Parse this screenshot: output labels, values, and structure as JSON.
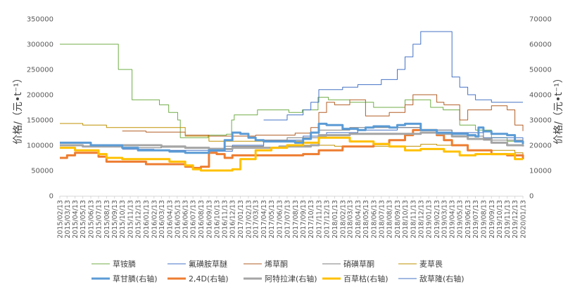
{
  "chart_data": {
    "type": "line",
    "title": "",
    "ylabel_left": "价格/（元•t⁻¹）",
    "ylabel_right": "价格/（元•t⁻¹）",
    "ylim_left": [
      0,
      350000
    ],
    "ylim_right": [
      0,
      70000
    ],
    "yticks_left": [
      "0",
      "50000",
      "100000",
      "150000",
      "200000",
      "250000",
      "300000",
      "350000"
    ],
    "yticks_right": [
      "0",
      "10000",
      "20000",
      "30000",
      "40000",
      "50000",
      "60000",
      "70000"
    ],
    "xlim": [
      "2015/02/13",
      "2020/01/13"
    ],
    "x_ticks": [
      "2015/02/13",
      "2015/03/13",
      "2015/04/13",
      "2015/05/13",
      "2015/06/13",
      "2015/07/13",
      "2015/08/13",
      "2015/09/13",
      "2015/10/13",
      "2015/11/13",
      "2015/12/13",
      "2016/01/13",
      "2016/02/13",
      "2016/03/13",
      "2016/04/13",
      "2016/05/13",
      "2016/06/13",
      "2016/07/13",
      "2016/08/13",
      "2016/09/13",
      "2016/10/13",
      "2016/11/13",
      "2016/12/13",
      "2017/01/13",
      "2017/02/13",
      "2017/03/13",
      "2017/04/13",
      "2017/05/13",
      "2017/06/13",
      "2017/07/13",
      "2017/08/13",
      "2017/09/13",
      "2017/10/13",
      "2017/11/13",
      "2017/12/13",
      "2018/01/13",
      "2018/02/13",
      "2018/03/13",
      "2018/04/13",
      "2018/05/13",
      "2018/06/13",
      "2018/07/13",
      "2018/08/13",
      "2018/09/13",
      "2018/10/13",
      "2018/11/13",
      "2018/12/13",
      "2019/01/13",
      "2019/02/13",
      "2019/03/13",
      "2019/04/13",
      "2019/05/13",
      "2019/06/13",
      "2019/07/13",
      "2019/08/13",
      "2019/09/13",
      "2019/10/13",
      "2019/11/13",
      "2019/12/13",
      "2020/01/13"
    ],
    "legend_position": "bottom",
    "grid": false,
    "series": [
      {
        "name": "草铵膦",
        "axis": "left",
        "color": "#70ad47",
        "width": 1,
        "points": [
          [
            "2015/02/13",
            300000
          ],
          [
            "2015/09/20",
            300000
          ],
          [
            "2015/09/28",
            250000
          ],
          [
            "2015/11/10",
            250000
          ],
          [
            "2015/11/20",
            190000
          ],
          [
            "2016/02/20",
            190000
          ],
          [
            "2016/03/05",
            180000
          ],
          [
            "2016/04/10",
            165000
          ],
          [
            "2016/05/15",
            150000
          ],
          [
            "2016/05/25",
            115000
          ],
          [
            "2016/09/10",
            120000
          ],
          [
            "2016/11/20",
            122000
          ],
          [
            "2016/12/10",
            150000
          ],
          [
            "2016/12/20",
            160000
          ],
          [
            "2017/02/20",
            160000
          ],
          [
            "2017/03/20",
            170000
          ],
          [
            "2017/06/20",
            170000
          ],
          [
            "2017/07/20",
            165000
          ],
          [
            "2017/09/10",
            170000
          ],
          [
            "2017/11/10",
            195000
          ],
          [
            "2017/12/20",
            190000
          ],
          [
            "2018/03/13",
            185000
          ],
          [
            "2018/06/13",
            175000
          ],
          [
            "2018/08/13",
            175000
          ],
          [
            "2018/10/13",
            190000
          ],
          [
            "2018/12/13",
            190000
          ],
          [
            "2019/01/20",
            175000
          ],
          [
            "2019/03/10",
            170000
          ],
          [
            "2019/05/13",
            140000
          ],
          [
            "2019/07/13",
            130000
          ],
          [
            "2019/09/13",
            115000
          ],
          [
            "2019/11/13",
            108000
          ],
          [
            "2020/01/13",
            100000
          ]
        ]
      },
      {
        "name": "氟磺胺草醚",
        "axis": "left",
        "color": "#4472c4",
        "width": 1,
        "points": [
          [
            "2015/10/13",
            92000
          ],
          [
            "2016/02/13",
            90000
          ],
          [
            "2016/06/13",
            90000
          ],
          [
            "2016/09/13",
            88000
          ],
          [
            "2016/12/13",
            100000
          ],
          [
            "2017/04/13",
            110000
          ],
          [
            "2017/09/13",
            118000
          ],
          [
            "2017/12/13",
            125000
          ],
          [
            "2018/04/13",
            130000
          ],
          [
            "2018/09/13",
            135000
          ],
          [
            "2018/12/13",
            130000
          ],
          [
            "2019/04/13",
            125000
          ],
          [
            "2019/08/13",
            115000
          ],
          [
            "2020/01/13",
            102000
          ]
        ]
      },
      {
        "name": "烯草酮",
        "axis": "left",
        "color": "#ed7d31",
        "width": 1,
        "darken": true,
        "points": [
          [
            "2015/10/13",
            128000
          ],
          [
            "2016/01/13",
            126000
          ],
          [
            "2016/06/13",
            120000
          ],
          [
            "2016/09/13",
            118000
          ],
          [
            "2017/03/13",
            120000
          ],
          [
            "2017/08/13",
            124000
          ],
          [
            "2017/10/13",
            135000
          ],
          [
            "2017/11/13",
            165000
          ],
          [
            "2017/12/13",
            185000
          ],
          [
            "2018/01/13",
            180000
          ],
          [
            "2018/03/13",
            190000
          ],
          [
            "2018/05/13",
            158000
          ],
          [
            "2018/08/13",
            165000
          ],
          [
            "2018/10/13",
            180000
          ],
          [
            "2018/11/13",
            200000
          ],
          [
            "2019/01/13",
            200000
          ],
          [
            "2019/02/13",
            185000
          ],
          [
            "2019/03/13",
            180000
          ],
          [
            "2019/05/13",
            150000
          ],
          [
            "2019/06/13",
            170000
          ],
          [
            "2019/09/13",
            178000
          ],
          [
            "2019/11/13",
            170000
          ],
          [
            "2019/12/13",
            140000
          ],
          [
            "2020/01/13",
            128000
          ]
        ]
      },
      {
        "name": "硝磺草酮",
        "axis": "left",
        "color": "#a5a5a5",
        "width": 1,
        "darken": true,
        "points": [
          [
            "2015/02/13",
            104000
          ],
          [
            "2015/06/13",
            101000
          ],
          [
            "2015/10/13",
            95000
          ],
          [
            "2016/03/13",
            96000
          ],
          [
            "2016/07/13",
            94000
          ],
          [
            "2016/11/13",
            98000
          ],
          [
            "2017/04/13",
            110000
          ],
          [
            "2017/07/13",
            115000
          ],
          [
            "2017/11/13",
            130000
          ],
          [
            "2018/03/13",
            135000
          ],
          [
            "2018/08/13",
            135000
          ],
          [
            "2018/12/13",
            130000
          ],
          [
            "2019/04/13",
            118000
          ],
          [
            "2019/08/13",
            110000
          ],
          [
            "2020/01/13",
            105000
          ]
        ]
      },
      {
        "name": "麦草畏",
        "axis": "left",
        "color": "#bf9000",
        "width": 1,
        "points": [
          [
            "2015/02/13",
            143000
          ],
          [
            "2015/05/13",
            140000
          ],
          [
            "2015/08/13",
            135000
          ],
          [
            "2016/03/13",
            135000
          ],
          [
            "2016/06/13",
            118000
          ],
          [
            "2016/09/13",
            108000
          ],
          [
            "2017/03/13",
            108000
          ],
          [
            "2017/09/13",
            100000
          ],
          [
            "2018/01/13",
            98000
          ],
          [
            "2018/06/13",
            98000
          ],
          [
            "2018/12/13",
            102000
          ],
          [
            "2019/02/13",
            100000
          ],
          [
            "2019/06/13",
            90000
          ],
          [
            "2019/12/13",
            85000
          ],
          [
            "2020/01/13",
            82000
          ]
        ]
      },
      {
        "name": "草甘膦(右轴)",
        "axis": "right",
        "color": "#5b9bd5",
        "width": 3,
        "points": [
          [
            "2015/02/13",
            21000
          ],
          [
            "2015/05/13",
            21000
          ],
          [
            "2015/06/13",
            20000
          ],
          [
            "2015/10/13",
            19000
          ],
          [
            "2015/12/13",
            18000
          ],
          [
            "2016/04/13",
            17500
          ],
          [
            "2016/06/13",
            17000
          ],
          [
            "2016/08/13",
            17000
          ],
          [
            "2016/09/13",
            18000
          ],
          [
            "2016/11/13",
            22000
          ],
          [
            "2016/12/13",
            25000
          ],
          [
            "2017/01/13",
            24500
          ],
          [
            "2017/02/13",
            23000
          ],
          [
            "2017/03/13",
            22000
          ],
          [
            "2017/04/13",
            21500
          ],
          [
            "2017/08/13",
            21000
          ],
          [
            "2017/09/13",
            22500
          ],
          [
            "2017/10/13",
            25000
          ],
          [
            "2017/11/13",
            28500
          ],
          [
            "2017/12/13",
            28000
          ],
          [
            "2018/02/13",
            26500
          ],
          [
            "2018/04/13",
            26000
          ],
          [
            "2018/05/13",
            27000
          ],
          [
            "2018/06/13",
            27500
          ],
          [
            "2018/08/13",
            27000
          ],
          [
            "2018/09/13",
            28000
          ],
          [
            "2018/10/13",
            28500
          ],
          [
            "2018/12/13",
            26000
          ],
          [
            "2019/02/13",
            25000
          ],
          [
            "2019/04/13",
            24500
          ],
          [
            "2019/06/13",
            24000
          ],
          [
            "2019/07/13",
            23500
          ],
          [
            "2019/07/25",
            27000
          ],
          [
            "2019/08/13",
            25500
          ],
          [
            "2019/09/13",
            24500
          ],
          [
            "2019/11/13",
            24000
          ],
          [
            "2019/12/13",
            21500
          ],
          [
            "2020/01/13",
            20500
          ]
        ]
      },
      {
        "name": "2,4D(右轴)",
        "axis": "right",
        "color": "#ed7d31",
        "width": 3,
        "points": [
          [
            "2015/02/13",
            15000
          ],
          [
            "2015/03/13",
            16000
          ],
          [
            "2015/04/13",
            17000
          ],
          [
            "2015/07/13",
            15500
          ],
          [
            "2015/08/13",
            13500
          ],
          [
            "2015/12/13",
            13500
          ],
          [
            "2016/01/13",
            12500
          ],
          [
            "2016/06/13",
            11500
          ],
          [
            "2016/07/13",
            11000
          ],
          [
            "2016/08/13",
            11500
          ],
          [
            "2016/09/13",
            17000
          ],
          [
            "2016/10/13",
            16500
          ],
          [
            "2016/11/13",
            15000
          ],
          [
            "2016/12/13",
            16000
          ],
          [
            "2017/05/13",
            16000
          ],
          [
            "2017/09/13",
            16500
          ],
          [
            "2017/11/13",
            18000
          ],
          [
            "2018/02/13",
            19500
          ],
          [
            "2018/06/13",
            20500
          ],
          [
            "2018/08/13",
            22000
          ],
          [
            "2018/10/13",
            24000
          ],
          [
            "2018/11/13",
            26000
          ],
          [
            "2019/01/13",
            26000
          ],
          [
            "2019/02/13",
            24000
          ],
          [
            "2019/03/13",
            22000
          ],
          [
            "2019/04/13",
            20000
          ],
          [
            "2019/06/13",
            18000
          ],
          [
            "2019/09/13",
            16500
          ],
          [
            "2019/11/13",
            16000
          ],
          [
            "2020/01/13",
            14500
          ]
        ]
      },
      {
        "name": "阿特拉津(右轴)",
        "axis": "right",
        "color": "#a5a5a5",
        "width": 3,
        "points": [
          [
            "2015/02/13",
            20000
          ],
          [
            "2015/05/13",
            19500
          ],
          [
            "2015/09/13",
            19500
          ],
          [
            "2015/10/13",
            20000
          ],
          [
            "2016/03/13",
            19500
          ],
          [
            "2016/06/13",
            19000
          ],
          [
            "2016/09/13",
            18500
          ],
          [
            "2016/12/13",
            19000
          ],
          [
            "2017/06/13",
            19500
          ],
          [
            "2017/10/13",
            20000
          ],
          [
            "2017/11/13",
            24000
          ],
          [
            "2018/03/13",
            24500
          ],
          [
            "2018/10/13",
            24500
          ],
          [
            "2018/12/13",
            25000
          ],
          [
            "2019/02/13",
            24500
          ],
          [
            "2019/04/13",
            23500
          ],
          [
            "2019/06/13",
            22500
          ],
          [
            "2019/09/13",
            21000
          ],
          [
            "2019/11/13",
            20000
          ],
          [
            "2020/01/13",
            19500
          ]
        ]
      },
      {
        "name": "百草枯(右轴)",
        "axis": "right",
        "color": "#ffc000",
        "width": 3,
        "points": [
          [
            "2015/02/13",
            19000
          ],
          [
            "2015/04/13",
            18000
          ],
          [
            "2015/07/13",
            16500
          ],
          [
            "2015/08/13",
            15000
          ],
          [
            "2015/10/13",
            14500
          ],
          [
            "2016/04/13",
            13500
          ],
          [
            "2016/06/13",
            12000
          ],
          [
            "2016/07/13",
            10500
          ],
          [
            "2016/08/13",
            10000
          ],
          [
            "2016/12/13",
            10500
          ],
          [
            "2017/01/13",
            14500
          ],
          [
            "2017/03/13",
            18000
          ],
          [
            "2017/05/13",
            19000
          ],
          [
            "2017/07/13",
            20000
          ],
          [
            "2017/09/13",
            21000
          ],
          [
            "2017/11/13",
            23000
          ],
          [
            "2018/03/13",
            21500
          ],
          [
            "2018/06/13",
            20500
          ],
          [
            "2018/08/13",
            19500
          ],
          [
            "2018/10/13",
            18000
          ],
          [
            "2018/12/13",
            18500
          ],
          [
            "2019/03/13",
            17500
          ],
          [
            "2019/05/13",
            16000
          ],
          [
            "2019/07/13",
            16500
          ],
          [
            "2019/12/13",
            14500
          ],
          [
            "2020/01/13",
            14500
          ]
        ]
      },
      {
        "name": "敌草隆(右轴)",
        "axis": "right",
        "color": "#4472c4",
        "width": 1,
        "points": [
          [
            "2017/04/13",
            30000
          ],
          [
            "2017/06/13",
            30000
          ],
          [
            "2017/07/13",
            32000
          ],
          [
            "2017/09/13",
            34000
          ],
          [
            "2017/10/13",
            37000
          ],
          [
            "2017/11/13",
            42000
          ],
          [
            "2018/02/13",
            43000
          ],
          [
            "2018/04/13",
            44000
          ],
          [
            "2018/07/13",
            46000
          ],
          [
            "2018/09/13",
            50000
          ],
          [
            "2018/10/13",
            55000
          ],
          [
            "2018/11/13",
            60000
          ],
          [
            "2018/12/13",
            65000
          ],
          [
            "2019/03/13",
            65000
          ],
          [
            "2019/04/13",
            47000
          ],
          [
            "2019/05/13",
            43000
          ],
          [
            "2019/06/13",
            40000
          ],
          [
            "2019/07/13",
            38000
          ],
          [
            "2019/09/13",
            37000
          ],
          [
            "2019/11/13",
            37000
          ],
          [
            "2020/01/13",
            37000
          ]
        ]
      }
    ]
  }
}
